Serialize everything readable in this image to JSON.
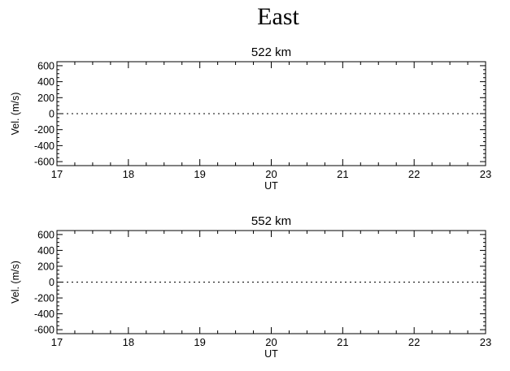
{
  "figure": {
    "title": "East"
  },
  "chart_data": [
    {
      "type": "line",
      "title": "522 km",
      "xlabel": "UT",
      "ylabel": "Vel. (m/s)",
      "xlim": [
        17,
        23
      ],
      "ylim": [
        -650,
        650
      ],
      "x_ticks": [
        17,
        18,
        19,
        20,
        21,
        22,
        23
      ],
      "y_ticks": [
        600,
        400,
        200,
        0,
        -200,
        -400,
        -600
      ],
      "reference_line": {
        "y": 0,
        "style": "dotted"
      },
      "series": []
    },
    {
      "type": "line",
      "title": "552 km",
      "xlabel": "UT",
      "ylabel": "Vel. (m/s)",
      "xlim": [
        17,
        23
      ],
      "ylim": [
        -650,
        650
      ],
      "x_ticks": [
        17,
        18,
        19,
        20,
        21,
        22,
        23
      ],
      "y_ticks": [
        600,
        400,
        200,
        0,
        -200,
        -400,
        -600
      ],
      "reference_line": {
        "y": 0,
        "style": "dotted"
      },
      "series": []
    }
  ]
}
